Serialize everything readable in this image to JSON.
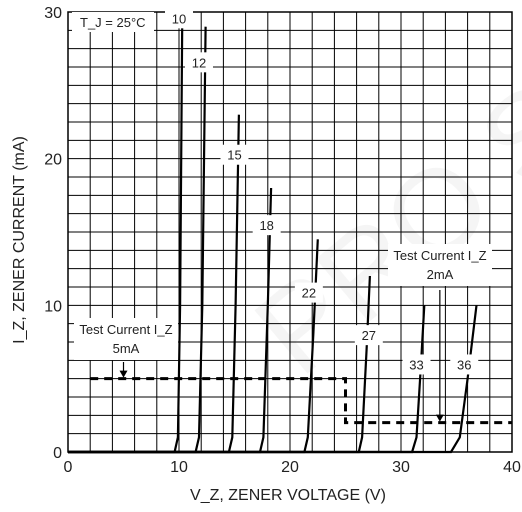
{
  "chart_data": {
    "type": "line",
    "title": "",
    "annotation": "T_J = 25°C",
    "xlabel": "V_Z, ZENER VOLTAGE (V)",
    "ylabel": "I_Z, ZENER CURRENT (mA)",
    "xlim": [
      0,
      40
    ],
    "ylim": [
      0,
      30
    ],
    "xticks": [
      "0",
      "10",
      "20",
      "30",
      "40"
    ],
    "yticks": [
      "0",
      "10",
      "20",
      "30"
    ],
    "grid": true,
    "series": [
      {
        "name": "10",
        "x": [
          0,
          9.6,
          9.9,
          10.1,
          10.3
        ],
        "y": [
          0,
          0,
          1,
          10,
          30
        ]
      },
      {
        "name": "12",
        "x": [
          0,
          11.5,
          11.8,
          12.1,
          12.4
        ],
        "y": [
          0,
          0,
          1,
          10,
          29
        ]
      },
      {
        "name": "15",
        "x": [
          0,
          14.5,
          14.8,
          15.1,
          15.4
        ],
        "y": [
          0,
          0,
          1,
          10,
          23
        ]
      },
      {
        "name": "18",
        "x": [
          0,
          17.3,
          17.6,
          18.0,
          18.3
        ],
        "y": [
          0,
          0,
          1,
          10,
          18
        ]
      },
      {
        "name": "22",
        "x": [
          0,
          21.3,
          21.6,
          22.1,
          22.5
        ],
        "y": [
          0,
          0,
          1,
          8,
          14.5
        ]
      },
      {
        "name": "27",
        "x": [
          0,
          26.2,
          26.5,
          26.9,
          27.2
        ],
        "y": [
          0,
          0,
          1,
          7,
          12
        ]
      },
      {
        "name": "33",
        "x": [
          0,
          31.0,
          31.4,
          31.8,
          32.1
        ],
        "y": [
          0,
          0,
          1,
          6,
          10
        ]
      },
      {
        "name": "36",
        "x": [
          0,
          34.5,
          35.3,
          36.0,
          36.8
        ],
        "y": [
          0,
          0,
          1,
          5,
          10
        ]
      }
    ],
    "test_current_5mA": {
      "label_line1": "Test Current I_Z",
      "label_line2": "5mA",
      "level": 5,
      "x_range": [
        2,
        25
      ],
      "arrow_x": 5
    },
    "test_current_2mA": {
      "label_line1": "Test Current I_Z",
      "label_line2": "2mA",
      "level": 2,
      "x_range": [
        25,
        40
      ],
      "arrow_x": 33.5
    },
    "watermark": "PRO S"
  }
}
